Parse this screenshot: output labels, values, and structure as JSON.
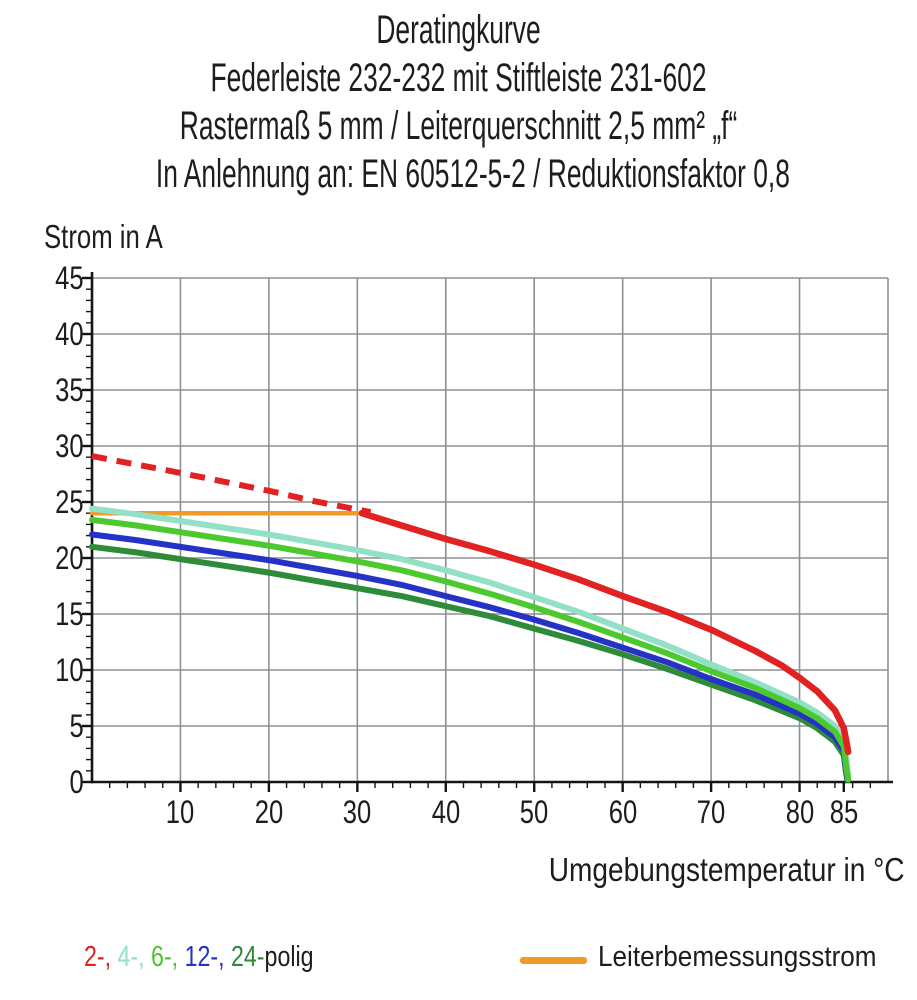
{
  "title_block": {
    "lines": [
      "Deratingkurve",
      "Federleiste 232-232 mit Stiftleiste 231-602",
      "Rastermaß 5 mm / Leiterquerschnitt 2,5 mm² „f“",
      "In Anlehnung an: EN 60512-5-2 / Reduktionsfaktor 0,8"
    ]
  },
  "chart_data": {
    "type": "line",
    "title": "Deratingkurve",
    "ylabel": "Strom in A",
    "xlabel": "Umgebungstemperatur in °C",
    "xlim": [
      0,
      90
    ],
    "ylim": [
      0,
      45
    ],
    "grid": true,
    "grid_color": "#8b9094",
    "axis_color": "#141414",
    "x_gridlines": [
      10,
      20,
      30,
      40,
      50,
      60,
      70,
      80,
      90
    ],
    "y_gridlines": [
      5,
      10,
      15,
      20,
      25,
      30,
      35,
      40,
      45
    ],
    "x_major_ticks": [
      10,
      20,
      30,
      40,
      50,
      60,
      70,
      80,
      85
    ],
    "x_tick_labels": [
      "10",
      "20",
      "30",
      "40",
      "50",
      "60",
      "70",
      "80",
      "85"
    ],
    "x_minor_step": 2,
    "y_major_ticks": [
      0,
      5,
      10,
      15,
      20,
      25,
      30,
      35,
      40,
      45
    ],
    "y_tick_labels": [
      "0",
      "5",
      "10",
      "15",
      "20",
      "25",
      "30",
      "35",
      "40",
      "45"
    ],
    "y_minor_step": 1,
    "series": [
      {
        "id": "leiterbemessungsstrom",
        "name": "Leiterbemessungsstrom",
        "color": "#f29a28",
        "width": 4.5,
        "dash": null,
        "points": [
          [
            0,
            24
          ],
          [
            30,
            24
          ]
        ]
      },
      {
        "id": "4-polig",
        "name": "4-polig",
        "color": "#92e0c5",
        "width": 6,
        "dash": null,
        "points": [
          [
            0,
            24.4
          ],
          [
            5,
            23.9
          ],
          [
            10,
            23.3
          ],
          [
            15,
            22.7
          ],
          [
            20,
            22.1
          ],
          [
            25,
            21.4
          ],
          [
            30,
            20.7
          ],
          [
            35,
            19.9
          ],
          [
            40,
            18.9
          ],
          [
            45,
            17.8
          ],
          [
            50,
            16.5
          ],
          [
            55,
            15.2
          ],
          [
            60,
            13.7
          ],
          [
            65,
            12.2
          ],
          [
            70,
            10.5
          ],
          [
            75,
            8.9
          ],
          [
            80,
            7.1
          ],
          [
            82,
            6.2
          ],
          [
            84,
            5.0
          ],
          [
            85,
            3.8
          ],
          [
            85.3,
            2.0
          ],
          [
            85.5,
            0.5
          ]
        ]
      },
      {
        "id": "24-polig",
        "name": "24-polig",
        "color": "#2e8b39",
        "width": 6,
        "dash": null,
        "points": [
          [
            0,
            21.0
          ],
          [
            5,
            20.5
          ],
          [
            10,
            19.9
          ],
          [
            15,
            19.3
          ],
          [
            20,
            18.7
          ],
          [
            25,
            18.0
          ],
          [
            30,
            17.3
          ],
          [
            35,
            16.6
          ],
          [
            40,
            15.7
          ],
          [
            45,
            14.8
          ],
          [
            50,
            13.7
          ],
          [
            55,
            12.6
          ],
          [
            60,
            11.4
          ],
          [
            65,
            10.1
          ],
          [
            70,
            8.7
          ],
          [
            75,
            7.3
          ],
          [
            80,
            5.7
          ],
          [
            82,
            4.8
          ],
          [
            84,
            3.6
          ],
          [
            85,
            2.4
          ],
          [
            85.2,
            1.2
          ],
          [
            85.4,
            0.2
          ]
        ]
      },
      {
        "id": "12-polig",
        "name": "12-polig",
        "color": "#2433c6",
        "width": 6,
        "dash": null,
        "points": [
          [
            0,
            22.1
          ],
          [
            5,
            21.6
          ],
          [
            10,
            21.0
          ],
          [
            15,
            20.4
          ],
          [
            20,
            19.8
          ],
          [
            25,
            19.1
          ],
          [
            30,
            18.4
          ],
          [
            35,
            17.6
          ],
          [
            40,
            16.6
          ],
          [
            45,
            15.6
          ],
          [
            50,
            14.5
          ],
          [
            55,
            13.3
          ],
          [
            60,
            12.0
          ],
          [
            65,
            10.7
          ],
          [
            70,
            9.2
          ],
          [
            75,
            7.8
          ],
          [
            80,
            6.1
          ],
          [
            82,
            5.2
          ],
          [
            84,
            4.0
          ],
          [
            85,
            2.8
          ],
          [
            85.2,
            1.4
          ],
          [
            85.4,
            0.3
          ]
        ]
      },
      {
        "id": "6-polig",
        "name": "6-polig",
        "color": "#4cc92e",
        "width": 6,
        "dash": null,
        "points": [
          [
            0,
            23.4
          ],
          [
            5,
            22.9
          ],
          [
            10,
            22.3
          ],
          [
            15,
            21.7
          ],
          [
            20,
            21.1
          ],
          [
            25,
            20.4
          ],
          [
            30,
            19.7
          ],
          [
            35,
            18.9
          ],
          [
            40,
            17.9
          ],
          [
            45,
            16.8
          ],
          [
            50,
            15.6
          ],
          [
            55,
            14.3
          ],
          [
            60,
            12.9
          ],
          [
            65,
            11.5
          ],
          [
            70,
            9.9
          ],
          [
            75,
            8.4
          ],
          [
            80,
            6.6
          ],
          [
            82,
            5.7
          ],
          [
            84,
            4.5
          ],
          [
            85,
            3.2
          ],
          [
            85.3,
            1.2
          ],
          [
            85.5,
            0.2
          ]
        ]
      },
      {
        "id": "2-polig-dashed",
        "name": "2-polig (gestrichelt)",
        "color": "#e02222",
        "width": 6,
        "dash": "15 10",
        "points": [
          [
            0,
            29.1
          ],
          [
            10,
            27.6
          ],
          [
            20,
            26.0
          ],
          [
            25,
            25.1
          ],
          [
            31.5,
            24.1
          ]
        ]
      },
      {
        "id": "2-polig",
        "name": "2-polig",
        "color": "#e02222",
        "width": 6.5,
        "dash": null,
        "points": [
          [
            30.5,
            24
          ],
          [
            35,
            22.9
          ],
          [
            40,
            21.7
          ],
          [
            45,
            20.6
          ],
          [
            50,
            19.4
          ],
          [
            55,
            18.1
          ],
          [
            60,
            16.6
          ],
          [
            65,
            15.2
          ],
          [
            70,
            13.6
          ],
          [
            75,
            11.7
          ],
          [
            78,
            10.4
          ],
          [
            80,
            9.3
          ],
          [
            82,
            8.1
          ],
          [
            84,
            6.4
          ],
          [
            85,
            4.8
          ],
          [
            85.3,
            3.6
          ],
          [
            85.5,
            2.7
          ]
        ]
      }
    ]
  },
  "legend": {
    "poles": {
      "segments": [
        {
          "text": "2-,",
          "color": "#e02222"
        },
        {
          "text": " 4-,",
          "color": "#92e0c5"
        },
        {
          "text": " 6-,",
          "color": "#4cc92e"
        },
        {
          "text": " 12-,",
          "color": "#2433c6"
        },
        {
          "text": " 24-",
          "color": "#2e8b39"
        },
        {
          "text": "polig",
          "color": "#1d1d1d"
        }
      ]
    },
    "conductor": {
      "label": "Leiterbemessungsstrom",
      "swatch_color": "#f29a28"
    }
  }
}
